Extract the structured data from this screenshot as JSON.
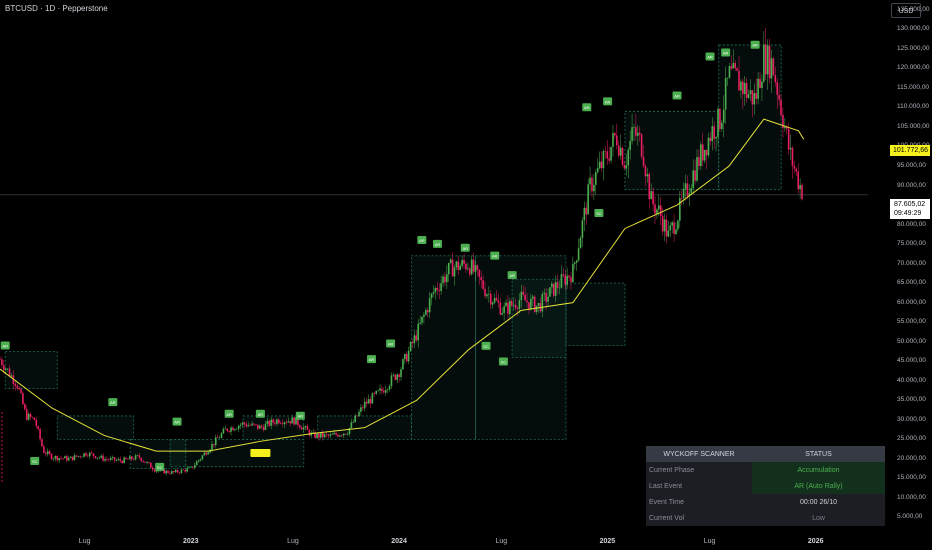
{
  "header": {
    "title": "BTCUSD · 1D · Pepperstone",
    "currency": "USD"
  },
  "colors": {
    "up": "#4caf50",
    "down": "#e91e63",
    "ma": "#e6e13a",
    "box": "#1f6e5c",
    "marker": "#4caf50",
    "highlight": "#f5f11d"
  },
  "price_labels": {
    "ma_value": "101.772,66",
    "last_price": "87.605,02",
    "countdown": "09:49:29"
  },
  "chart_data": {
    "type": "line",
    "ylim": [
      0,
      137500
    ],
    "y_ticks": [
      "135.000,00",
      "130.000,00",
      "125.000,00",
      "120.000,00",
      "115.000,00",
      "110.000,00",
      "105.000,00",
      "100.000,00",
      "95.000,00",
      "90.000,00",
      "85.000,00",
      "80.000,00",
      "75.000,00",
      "70.000,00",
      "65.000,00",
      "60.000,00",
      "55.000,00",
      "50.000,00",
      "45.000,00",
      "40.000,00",
      "35.000,00",
      "30.000,00",
      "25.000,00",
      "20.000,00",
      "15.000,00",
      "10.000,00",
      "5.000,00"
    ],
    "x_ticks": [
      {
        "label": "Lug",
        "year": false
      },
      {
        "label": "2023",
        "year": true
      },
      {
        "label": "Lug",
        "year": false
      },
      {
        "label": "2024",
        "year": true
      },
      {
        "label": "Lug",
        "year": false
      },
      {
        "label": "2025",
        "year": true
      },
      {
        "label": "Lug",
        "year": false
      },
      {
        "label": "2026",
        "year": true
      }
    ],
    "x_tick_months": [
      5.0,
      11.0,
      17.0,
      23.0,
      29.0,
      35.0,
      41.0,
      47.0
    ],
    "xlim_months": [
      0,
      50
    ],
    "series": [
      {
        "x": [
          0,
          1,
          1.5,
          2,
          2.5,
          3,
          4,
          5,
          6,
          7,
          8,
          9,
          10,
          11,
          12,
          13,
          14,
          15,
          16,
          17,
          18,
          19,
          20,
          21,
          22,
          23,
          23.5,
          24,
          25,
          26,
          27,
          28,
          29,
          30,
          31,
          32,
          33,
          34,
          35,
          35.5,
          36,
          36.5,
          37,
          37.5,
          38,
          38.5,
          39,
          40,
          41,
          41.5,
          42,
          42.5,
          43,
          43.5,
          44,
          44.5,
          45,
          45.5,
          46,
          46.3
        ],
        "values": [
          45500,
          39000,
          31000,
          30000,
          22000,
          20500,
          20000,
          21500,
          20000,
          19500,
          20500,
          17000,
          16500,
          17500,
          22500,
          27500,
          29000,
          28000,
          30000,
          29800,
          26000,
          25800,
          27000,
          34000,
          37500,
          42500,
          47000,
          52000,
          63000,
          69000,
          70000,
          63000,
          58000,
          61000,
          59000,
          64000,
          68000,
          90000,
          98000,
          103000,
          96000,
          104000,
          100000,
          86000,
          83000,
          77000,
          82000,
          94000,
          104000,
          107000,
          118000,
          117000,
          114000,
          112000,
          123000,
          121000,
          110000,
          98000,
          91000,
          87600
        ]
      },
      {
        "x": [
          0,
          3,
          6,
          9,
          12,
          15,
          18,
          21,
          24,
          27,
          30,
          33,
          36,
          39,
          42,
          44,
          46,
          46.3
        ],
        "values": [
          43000,
          33000,
          26000,
          22000,
          22000,
          24500,
          26500,
          28000,
          35000,
          48000,
          58000,
          60000,
          79000,
          85000,
          95000,
          107000,
          104000,
          101800
        ]
      }
    ],
    "boxes": [
      {
        "x0": 0.3,
        "x1": 3.3,
        "y0": 38000,
        "y1": 47500
      },
      {
        "x0": 3.3,
        "x1": 7.7,
        "y0": 25000,
        "y1": 31000
      },
      {
        "x0": 7.5,
        "x1": 10.7,
        "y0": 17500,
        "y1": 25000
      },
      {
        "x0": 9.8,
        "x1": 17.5,
        "y0": 18000,
        "y1": 25000
      },
      {
        "x0": 14.0,
        "x1": 17.5,
        "y0": 25000,
        "y1": 31000
      },
      {
        "x0": 18.3,
        "x1": 23.7,
        "y0": 25000,
        "y1": 31000
      },
      {
        "x0": 23.7,
        "x1": 27.4,
        "y0": 25000,
        "y1": 72000
      },
      {
        "x0": 27.4,
        "x1": 32.6,
        "y0": 25000,
        "y1": 72000
      },
      {
        "x0": 29.5,
        "x1": 32.6,
        "y0": 46000,
        "y1": 66000
      },
      {
        "x0": 32.6,
        "x1": 36.0,
        "y0": 49000,
        "y1": 65000
      },
      {
        "x0": 36.0,
        "x1": 41.4,
        "y0": 89000,
        "y1": 109000
      },
      {
        "x0": 41.4,
        "x1": 45.0,
        "y0": 89000,
        "y1": 126000
      }
    ],
    "markers_up": [
      {
        "x": 0.3,
        "y": 47000,
        "label": "AR"
      },
      {
        "x": 6.5,
        "y": 32500,
        "label": "AR"
      },
      {
        "x": 10.2,
        "y": 27500,
        "label": "AR"
      },
      {
        "x": 13.2,
        "y": 29500,
        "label": "AR"
      },
      {
        "x": 15.0,
        "y": 29500,
        "label": "AR"
      },
      {
        "x": 17.3,
        "y": 29000,
        "label": "AR"
      },
      {
        "x": 21.4,
        "y": 43500,
        "label": "AR"
      },
      {
        "x": 22.5,
        "y": 47500,
        "label": "AR"
      },
      {
        "x": 24.3,
        "y": 74000,
        "label": "AR"
      },
      {
        "x": 25.2,
        "y": 73000,
        "label": "AR"
      },
      {
        "x": 26.8,
        "y": 72000,
        "label": "AR"
      },
      {
        "x": 28.5,
        "y": 70000,
        "label": "AR"
      },
      {
        "x": 29.5,
        "y": 65000,
        "label": "AR"
      },
      {
        "x": 33.8,
        "y": 108000,
        "label": "AR"
      },
      {
        "x": 35.0,
        "y": 109500,
        "label": "AR"
      },
      {
        "x": 39.0,
        "y": 111000,
        "label": "AR"
      },
      {
        "x": 40.9,
        "y": 121000,
        "label": "AR"
      },
      {
        "x": 41.8,
        "y": 122000,
        "label": "AR"
      },
      {
        "x": 43.5,
        "y": 124000,
        "label": "AR"
      }
    ],
    "markers_down": [
      {
        "x": 2.0,
        "y": 21500,
        "label": "SC"
      },
      {
        "x": 9.2,
        "y": 20000,
        "label": "SC"
      },
      {
        "x": 28.0,
        "y": 51000,
        "label": "SC"
      },
      {
        "x": 29.0,
        "y": 47000,
        "label": "SC"
      },
      {
        "x": 34.5,
        "y": 85000,
        "label": "SC"
      }
    ],
    "highlight_marker": {
      "x": 15.0,
      "y": 21500
    },
    "horizontal_line": 87605.02
  },
  "scanner": {
    "header_left": "WYCKOFF SCANNER",
    "header_right": "STATUS",
    "rows": [
      {
        "label": "Current Phase",
        "value": "Accumulation"
      },
      {
        "label": "Last Event",
        "value": "AR (Auto Rally)"
      },
      {
        "label": "Event Time",
        "value": "00:00 26/10"
      },
      {
        "label": "Current Vol",
        "value": "Low"
      }
    ]
  }
}
